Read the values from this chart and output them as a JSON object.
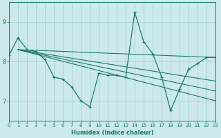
{
  "bg_color": "#cce9eb",
  "grid_color": "#a8d0d3",
  "line_color": "#1a7a6e",
  "xlabel": "Humidex (Indice chaleur)",
  "xlim": [
    0,
    23
  ],
  "ylim": [
    6.5,
    9.5
  ],
  "yticks": [
    7,
    8,
    9
  ],
  "xticks": [
    0,
    1,
    2,
    3,
    4,
    5,
    6,
    7,
    8,
    9,
    10,
    11,
    12,
    13,
    14,
    15,
    16,
    17,
    18,
    19,
    20,
    21,
    22,
    23
  ],
  "main_x": [
    0,
    1,
    2,
    3,
    4,
    5,
    6,
    7,
    8,
    9,
    10,
    11,
    12,
    13,
    14,
    15,
    16,
    17,
    18,
    19,
    20,
    21,
    22,
    23
  ],
  "main_y": [
    8.15,
    8.6,
    8.3,
    8.25,
    8.05,
    7.6,
    7.55,
    7.35,
    7.0,
    6.85,
    7.7,
    7.65,
    7.65,
    7.6,
    9.25,
    8.5,
    8.2,
    7.6,
    6.75,
    7.3,
    7.8,
    7.95,
    8.1,
    8.1
  ],
  "trend_lines": [
    {
      "x": [
        1,
        23
      ],
      "y": [
        8.3,
        8.1
      ]
    },
    {
      "x": [
        1,
        23
      ],
      "y": [
        8.3,
        7.5
      ]
    },
    {
      "x": [
        1,
        23
      ],
      "y": [
        8.3,
        7.25
      ]
    },
    {
      "x": [
        1,
        23
      ],
      "y": [
        8.3,
        7.0
      ]
    }
  ]
}
